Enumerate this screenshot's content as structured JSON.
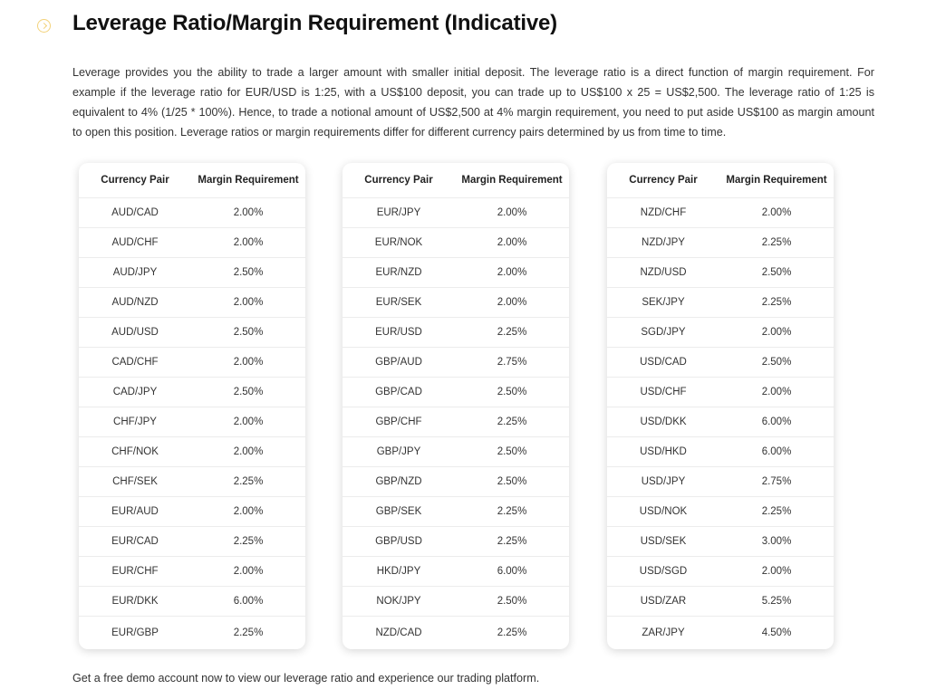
{
  "header": {
    "title": "Leverage Ratio/Margin Requirement (Indicative)"
  },
  "intro": "Leverage provides you the ability to trade a larger amount with smaller initial deposit. The leverage ratio is a direct function of margin requirement. For example if the leverage ratio for EUR/USD is 1:25, with a US$100 deposit, you can trade up to US$100 x 25 = US$2,500. The leverage ratio of 1:25 is equivalent to 4% (1/25 * 100%). Hence, to trade a notional amount of US$2,500 at 4% margin requirement, you need to put aside US$100 as margin amount to open this position. Leverage ratios or margin requirements differ for different currency pairs determined by us from time to time.",
  "tables": [
    {
      "headers": [
        "Currency Pair",
        "Margin Requirement"
      ],
      "rows": [
        [
          "AUD/CAD",
          "2.00%"
        ],
        [
          "AUD/CHF",
          "2.00%"
        ],
        [
          "AUD/JPY",
          "2.50%"
        ],
        [
          "AUD/NZD",
          "2.00%"
        ],
        [
          "AUD/USD",
          "2.50%"
        ],
        [
          "CAD/CHF",
          "2.00%"
        ],
        [
          "CAD/JPY",
          "2.50%"
        ],
        [
          "CHF/JPY",
          "2.00%"
        ],
        [
          "CHF/NOK",
          "2.00%"
        ],
        [
          "CHF/SEK",
          "2.25%"
        ],
        [
          "EUR/AUD",
          "2.00%"
        ],
        [
          "EUR/CAD",
          "2.25%"
        ],
        [
          "EUR/CHF",
          "2.00%"
        ],
        [
          "EUR/DKK",
          "6.00%"
        ],
        [
          "EUR/GBP",
          "2.25%"
        ]
      ]
    },
    {
      "headers": [
        "Currency Pair",
        "Margin Requirement"
      ],
      "rows": [
        [
          "EUR/JPY",
          "2.00%"
        ],
        [
          "EUR/NOK",
          "2.00%"
        ],
        [
          "EUR/NZD",
          "2.00%"
        ],
        [
          "EUR/SEK",
          "2.00%"
        ],
        [
          "EUR/USD",
          "2.25%"
        ],
        [
          "GBP/AUD",
          "2.75%"
        ],
        [
          "GBP/CAD",
          "2.50%"
        ],
        [
          "GBP/CHF",
          "2.25%"
        ],
        [
          "GBP/JPY",
          "2.50%"
        ],
        [
          "GBP/NZD",
          "2.50%"
        ],
        [
          "GBP/SEK",
          "2.25%"
        ],
        [
          "GBP/USD",
          "2.25%"
        ],
        [
          "HKD/JPY",
          "6.00%"
        ],
        [
          "NOK/JPY",
          "2.50%"
        ],
        [
          "NZD/CAD",
          "2.25%"
        ]
      ]
    },
    {
      "headers": [
        "Currency Pair",
        "Margin Requirement"
      ],
      "rows": [
        [
          "NZD/CHF",
          "2.00%"
        ],
        [
          "NZD/JPY",
          "2.25%"
        ],
        [
          "NZD/USD",
          "2.50%"
        ],
        [
          "SEK/JPY",
          "2.25%"
        ],
        [
          "SGD/JPY",
          "2.00%"
        ],
        [
          "USD/CAD",
          "2.50%"
        ],
        [
          "USD/CHF",
          "2.00%"
        ],
        [
          "USD/DKK",
          "6.00%"
        ],
        [
          "USD/HKD",
          "6.00%"
        ],
        [
          "USD/JPY",
          "2.75%"
        ],
        [
          "USD/NOK",
          "2.25%"
        ],
        [
          "USD/SEK",
          "3.00%"
        ],
        [
          "USD/SGD",
          "2.00%"
        ],
        [
          "USD/ZAR",
          "5.25%"
        ],
        [
          "ZAR/JPY",
          "4.50%"
        ]
      ]
    }
  ],
  "footer": "Get a free demo account now to view our leverage ratio and experience our trading platform."
}
